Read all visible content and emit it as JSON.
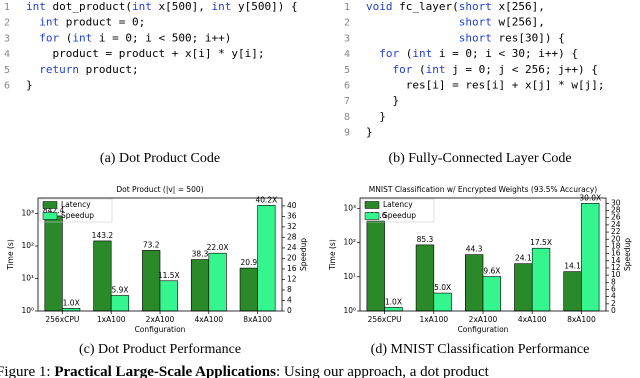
{
  "code_a": {
    "numbers": [
      1,
      2,
      3,
      4,
      5,
      6
    ],
    "lines": [
      "int dot_product(int x[500], int y[500]) {",
      "  int product = 0;",
      "  for (int i = 0; i < 500; i++)",
      "    product = product + x[i] * y[i];",
      "  return product;",
      "}"
    ]
  },
  "code_b": {
    "numbers": [
      1,
      2,
      3,
      4,
      5,
      6,
      7,
      8,
      9
    ],
    "lines": [
      "void fc_layer(short x[256],",
      "              short w[256],",
      "              short res[30]) {",
      "  for (int i = 0; i < 30; i++) {",
      "    for (int j = 0; j < 256; j++) {",
      "      res[i] = res[i] + x[j] * w[j];",
      "    }",
      "  }",
      "}"
    ]
  },
  "captions": [
    "(a) Dot Product Code",
    "(b) Fully-Connected Layer Code",
    "(c) Dot Product Performance",
    "(d) MNIST Classification Performance"
  ],
  "figure_caption": {
    "label": "Figure 1: ",
    "bold": "Practical Large-Scale Applications",
    "text": ": Using our approach, a dot product"
  },
  "chart_data": [
    {
      "type": "bar",
      "title": "Dot Product (|v| = 500)",
      "x_label": "Configuration",
      "y_label": "Time (s)",
      "y2_label": "Speedup",
      "categories": [
        "256xCPU",
        "1xA100",
        "2xA100",
        "4xA100",
        "8xA100"
      ],
      "series": [
        {
          "name": "Latency",
          "color": "#2a8a2a",
          "values": [
            842.4,
            143.2,
            73.2,
            38.3,
            20.9
          ]
        },
        {
          "name": "Speedup",
          "color": "#35f58f",
          "axis": "y2",
          "values": [
            1.0,
            5.9,
            11.5,
            22.0,
            40.2
          ],
          "value_labels": [
            "1.0X",
            "5.9X",
            "11.5X",
            "22.0X",
            "40.2X"
          ]
        }
      ],
      "ylog": true,
      "ylim": [
        1,
        3000
      ],
      "yticks": [
        {
          "value": 1,
          "label": "10⁰"
        },
        {
          "value": 10,
          "label": "10¹"
        },
        {
          "value": 100,
          "label": "10²"
        },
        {
          "value": 1000,
          "label": "10³"
        }
      ],
      "y2lim": [
        0,
        43
      ],
      "y2ticks": [
        0,
        4,
        8,
        12,
        16,
        20,
        24,
        28,
        32,
        36,
        40
      ],
      "legend": "upper-left"
    },
    {
      "type": "bar",
      "title": "MNIST Classification w/ Encrypted Weights (93.5% Accuracy)",
      "x_label": "Configuration",
      "y_label": "Time (s)",
      "y2_label": "Speedup",
      "categories": [
        "256xCPU",
        "1xA100",
        "2xA100",
        "4xA100",
        "8xA100"
      ],
      "series": [
        {
          "name": "Latency",
          "color": "#2a8a2a",
          "values": [
            423.6,
            85.3,
            44.3,
            24.1,
            14.1
          ]
        },
        {
          "name": "Speedup",
          "color": "#35f58f",
          "axis": "y2",
          "values": [
            1.0,
            5.0,
            9.6,
            17.5,
            30.0
          ],
          "value_labels": [
            "1.0X",
            "5.0X",
            "9.6X",
            "17.5X",
            "30.0X"
          ]
        }
      ],
      "ylog": true,
      "ylim": [
        1,
        2000
      ],
      "yticks": [
        {
          "value": 1,
          "label": "10⁰"
        },
        {
          "value": 10,
          "label": "10¹"
        },
        {
          "value": 100,
          "label": "10²"
        },
        {
          "value": 1000,
          "label": "10³"
        }
      ],
      "y2lim": [
        0,
        31.5
      ],
      "y2ticks": [
        0,
        2,
        4,
        6,
        8,
        10,
        12,
        14,
        16,
        18,
        20,
        22,
        24,
        26,
        28,
        30
      ],
      "legend": "upper-left"
    }
  ]
}
